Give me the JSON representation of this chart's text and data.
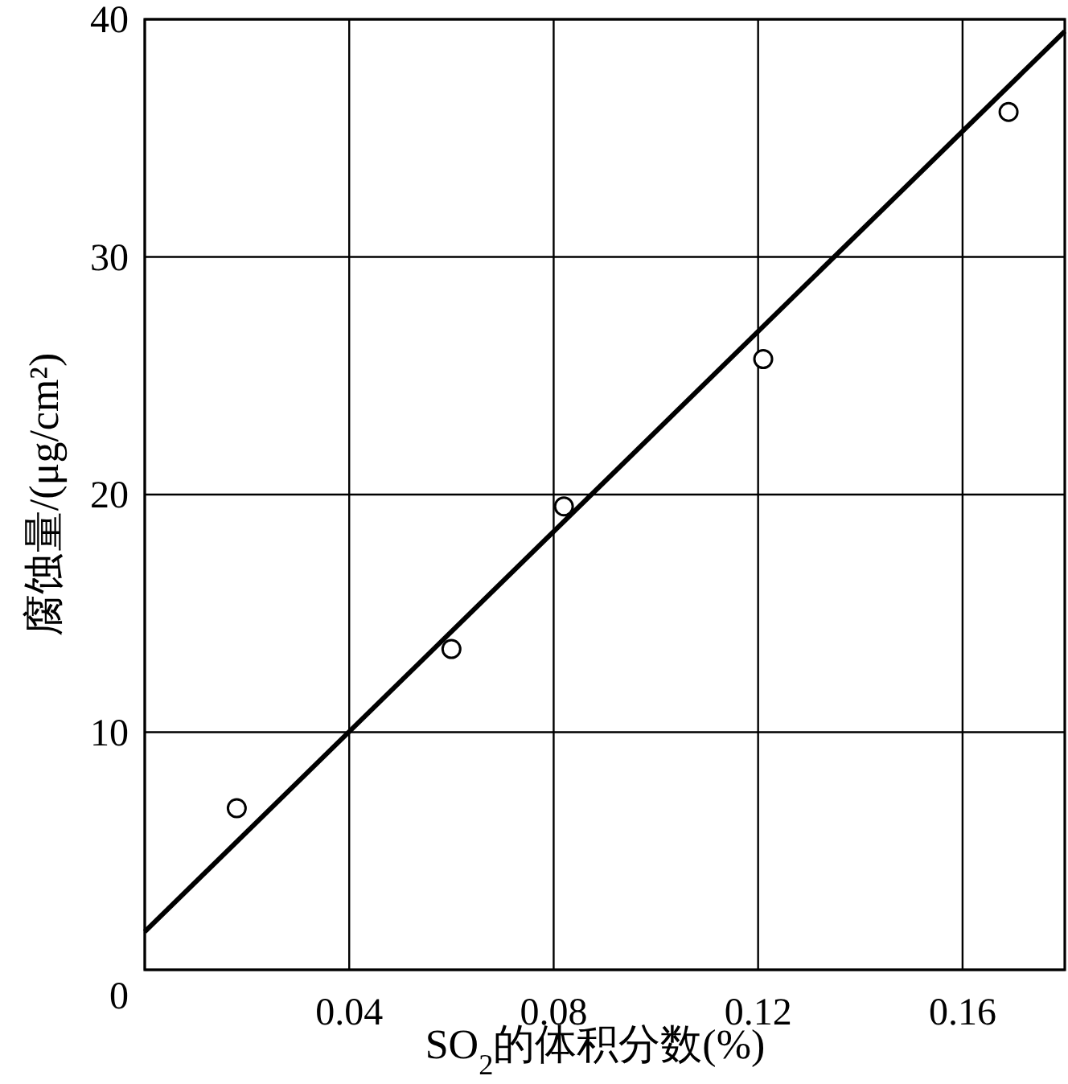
{
  "chart_data": {
    "type": "scatter",
    "xlabel": "SO$_{2}$的体积分数(%)",
    "ylabel": "腐蚀量/(μg/cm²)",
    "xlim": [
      0,
      0.18
    ],
    "xticks": [
      {
        "value": 0,
        "label": null
      },
      0.04,
      0.08,
      0.12,
      0.16
    ],
    "ylim": [
      0,
      40
    ],
    "yticks": [
      0,
      10,
      20,
      30,
      40
    ],
    "grid": true,
    "series": [
      {
        "marker": "circle",
        "color": "#000000",
        "x": [
          0.018,
          0.06,
          0.082,
          0.121,
          0.169
        ],
        "values": [
          6.8,
          13.5,
          19.5,
          25.7,
          36.1
        ]
      },
      {
        "type": "line",
        "color": "#000000",
        "x": [
          0,
          0.18
        ],
        "values": [
          1.6,
          39.5
        ]
      }
    ]
  }
}
